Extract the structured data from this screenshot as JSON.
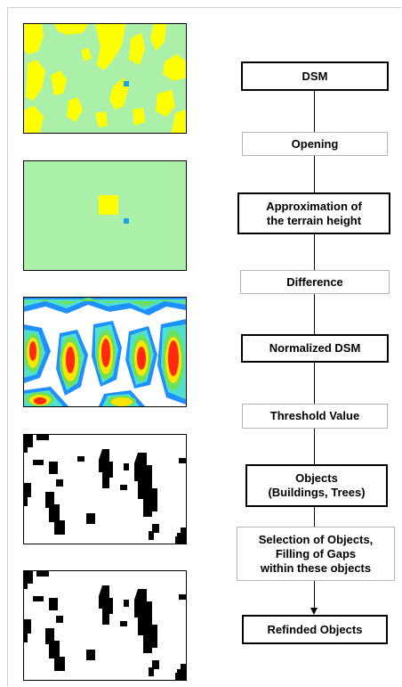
{
  "flowchart": {
    "steps": [
      {
        "id": "dsm",
        "label": "DSM",
        "kind": "main"
      },
      {
        "id": "opening",
        "label": "Opening",
        "kind": "op"
      },
      {
        "id": "terrain",
        "label": "Approximation of\nthe terrain height",
        "kind": "main"
      },
      {
        "id": "difference",
        "label": "Difference",
        "kind": "op"
      },
      {
        "id": "ndsm",
        "label": "Normalized DSM",
        "kind": "main"
      },
      {
        "id": "threshold",
        "label": "Threshold Value",
        "kind": "op"
      },
      {
        "id": "objects",
        "label": "Objects\n(Buildings, Trees)",
        "kind": "main"
      },
      {
        "id": "selection",
        "label": "Selection of Objects,\nFilling of Gaps\nwithin these objects",
        "kind": "op"
      },
      {
        "id": "refined",
        "label": "Refinded Objects",
        "kind": "main"
      }
    ]
  },
  "panels": [
    {
      "id": "dsm-map",
      "colors": {
        "background": "#aaf0a8",
        "high": "#ffff00",
        "mark": "#1ea0f0"
      }
    },
    {
      "id": "terrain-map",
      "colors": {
        "background": "#aaf0a8",
        "high": "#ffff00",
        "mark": "#1ea0f0"
      }
    },
    {
      "id": "ndsm-map",
      "colors": {
        "background": "#ffffff",
        "low": "#1e90ff",
        "mid": "#50e0d0",
        "green": "#6ee05a",
        "high": "#ffe400",
        "peak": "#ff2a10"
      }
    },
    {
      "id": "objects-mask",
      "colors": {
        "background": "#ffffff",
        "object": "#000000"
      }
    },
    {
      "id": "refined-mask",
      "colors": {
        "background": "#ffffff",
        "object": "#000000"
      }
    }
  ]
}
